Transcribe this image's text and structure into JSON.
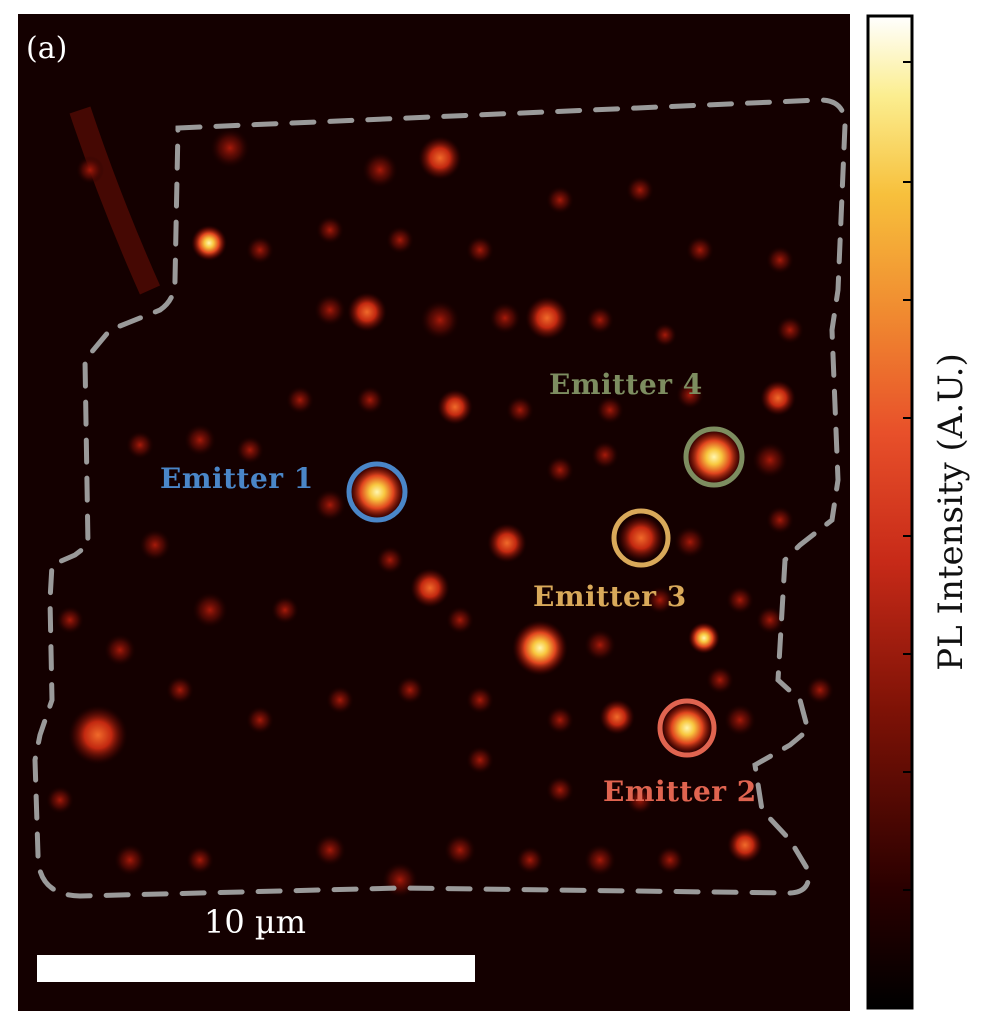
{
  "panel_label": "(a)",
  "scale_bar": {
    "label": "10 µm"
  },
  "colorbar": {
    "label": "PL Intensity (A.U.)",
    "colormap": [
      "#000000",
      "#3a0000",
      "#8e1308",
      "#d8331c",
      "#f0682a",
      "#f5a232",
      "#f8d646",
      "#fff7cc",
      "#ffffff"
    ]
  },
  "emitters": [
    {
      "name": "Emitter 1",
      "color": "#4a86c8"
    },
    {
      "name": "Emitter 2",
      "color": "#e06450"
    },
    {
      "name": "Emitter 3",
      "color": "#d9a95a"
    },
    {
      "name": "Emitter 4",
      "color": "#7d8d60"
    }
  ],
  "region_outline_color": "#9a9a9a"
}
